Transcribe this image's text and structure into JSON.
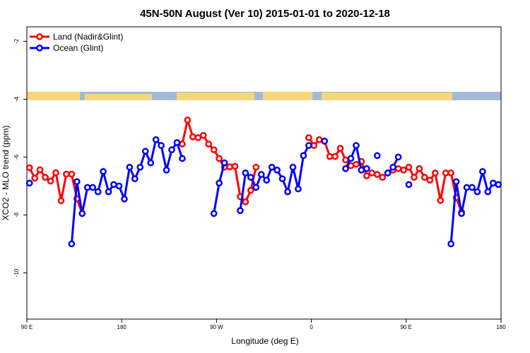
{
  "chart_data": {
    "type": "line",
    "title": "45N-50N August (Ver 10)   2015-01-01 to 2020-12-18",
    "xlabel": "Longitude (deg E)",
    "ylabel": "XCO2 - MLO trend (ppm)",
    "x": [
      92.5,
      97.5,
      102.5,
      107.5,
      112.5,
      117.5,
      122.5,
      127.5,
      132.5,
      137.5,
      142.5,
      147.5,
      152.5,
      157.5,
      162.5,
      167.5,
      172.5,
      177.5,
      182.5,
      187.5,
      192.5,
      197.5,
      202.5,
      207.5,
      212.5,
      217.5,
      222.5,
      227.5,
      232.5,
      237.5,
      242.5,
      247.5,
      252.5,
      257.5,
      262.5,
      267.5,
      272.5,
      277.5,
      282.5,
      287.5,
      292.5,
      297.5,
      302.5,
      307.5,
      312.5,
      317.5,
      322.5,
      327.5,
      332.5,
      337.5,
      342.5,
      347.5,
      352.5,
      357.5,
      362.5,
      367.5,
      372.5,
      377.5,
      382.5,
      387.5,
      392.5,
      397.5,
      402.5,
      407.5,
      412.5,
      417.5,
      422.5,
      427.5,
      432.5,
      437.5,
      442.5,
      447.5,
      452.5,
      457.5,
      462.5,
      467.5,
      472.5,
      477.5,
      482.5,
      487.5,
      492.5,
      497.5,
      502.5,
      507.5,
      512.5,
      517.5,
      522.5,
      527.5,
      532.5,
      537.5
    ],
    "series": [
      {
        "name": "Land (Nadir&Glint)",
        "color": "#ff0000",
        "values": [
          -6.37,
          -6.73,
          -6.44,
          -6.7,
          -6.83,
          -6.54,
          -7.51,
          -6.59,
          -6.59,
          -7.44,
          -7.95,
          null,
          null,
          null,
          null,
          null,
          null,
          null,
          null,
          null,
          null,
          null,
          null,
          null,
          null,
          null,
          null,
          null,
          null,
          -5.55,
          -4.72,
          -5.3,
          -5.33,
          -5.25,
          -5.55,
          -5.75,
          -6.05,
          -6.35,
          -6.34,
          -6.32,
          -7.37,
          -7.55,
          -7.15,
          -6.35,
          null,
          null,
          null,
          null,
          null,
          null,
          null,
          null,
          null,
          -5.33,
          -5.6,
          -5.4,
          -5.45,
          -5.98,
          -5.98,
          -5.7,
          -6.1,
          -6.3,
          -6.25,
          -6.15,
          -6.65,
          -6.55,
          -6.6,
          -6.7,
          -6.55,
          -6.45,
          -6.4,
          -6.45,
          -6.35,
          -6.7,
          -6.4,
          -6.7,
          -6.8,
          -6.55,
          -7.5,
          -6.55,
          -6.55,
          -7.4,
          -7.9,
          null,
          null,
          null,
          null,
          null,
          null,
          null
        ]
      },
      {
        "name": "Ocean (Glint)",
        "color": "#0000ff",
        "values": [
          -6.9,
          null,
          null,
          null,
          null,
          null,
          null,
          null,
          -9.0,
          -6.85,
          -7.95,
          -7.05,
          -7.05,
          -7.2,
          -6.5,
          -7.2,
          -6.95,
          -7.0,
          -7.45,
          -6.35,
          -6.75,
          -6.35,
          -5.8,
          -6.2,
          -5.4,
          -5.6,
          -6.45,
          -5.75,
          -5.5,
          -6.05,
          null,
          null,
          null,
          null,
          null,
          -7.95,
          -6.9,
          -6.2,
          null,
          null,
          -7.85,
          -6.55,
          -6.7,
          -7.05,
          -6.6,
          -6.8,
          -6.35,
          -6.45,
          -6.75,
          -7.2,
          -6.35,
          -7.1,
          -5.95,
          -5.6,
          null,
          null,
          -5.45,
          null,
          null,
          null,
          -6.4,
          -6.05,
          -5.6,
          -6.45,
          -6.4,
          null,
          -5.95,
          null,
          -6.55,
          -6.35,
          -6.0,
          null,
          -6.95,
          null,
          null,
          null,
          null,
          null,
          null,
          null,
          -9.0,
          -6.85,
          -7.95,
          -7.05,
          -7.05,
          -7.2,
          -6.5,
          -7.2,
          -6.9,
          -6.95
        ]
      }
    ],
    "xlim": [
      90,
      540
    ],
    "xticks": [
      {
        "value": 90,
        "label": "90 E"
      },
      180,
      {
        "value": 270,
        "label": "90 W"
      },
      {
        "value": 360,
        "label": "0"
      },
      {
        "value": 450,
        "label": "90 E"
      },
      {
        "value": 540,
        "label": "180"
      }
    ],
    "ylim": [
      -11.6,
      -1.5
    ],
    "yticks": [
      -10,
      -8,
      -6,
      -4,
      -2
    ],
    "legend": "top-left"
  }
}
